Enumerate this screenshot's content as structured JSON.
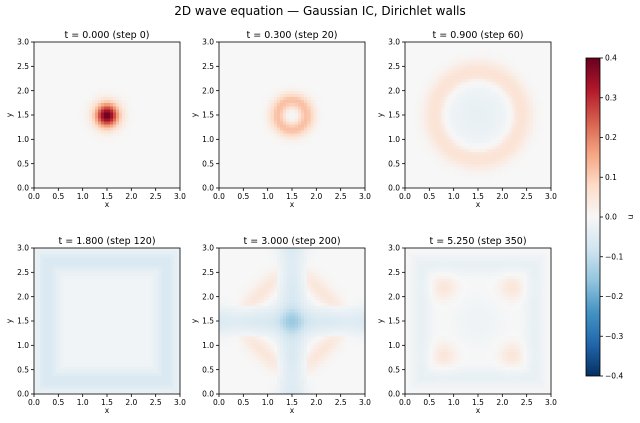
{
  "title": "2D wave equation — Gaussian IC, Dirichlet walls",
  "colorbar": {
    "label": "u",
    "range": [
      -0.4,
      0.4
    ],
    "ticks": [
      "0.4",
      "0.3",
      "0.2",
      "0.1",
      "0.0",
      "−0.1",
      "−0.2",
      "−0.3",
      "−0.4"
    ],
    "colormap": "RdBu_r"
  },
  "axis_ticks": [
    "0.0",
    "0.5",
    "1.0",
    "1.5",
    "2.0",
    "2.5",
    "3.0"
  ],
  "chart_data": [
    {
      "type": "heatmap",
      "title": "t = 0.000  (step 0)",
      "xlabel": "x",
      "ylabel": "y",
      "xlim": [
        0,
        3
      ],
      "ylim": [
        0,
        3
      ],
      "pattern": "gaussian",
      "peak_value": 0.4
    },
    {
      "type": "heatmap",
      "title": "t = 0.300  (step 20)",
      "xlabel": "x",
      "ylabel": "y",
      "xlim": [
        0,
        3
      ],
      "ylim": [
        0,
        3
      ],
      "pattern": "ring",
      "peak_value": 0.12
    },
    {
      "type": "heatmap",
      "title": "t = 0.900  (step 60)",
      "xlabel": "x",
      "ylabel": "y",
      "xlim": [
        0,
        3
      ],
      "ylim": [
        0,
        3
      ],
      "pattern": "ring",
      "peak_value": 0.06
    },
    {
      "type": "heatmap",
      "title": "t = 1.800  (step 120)",
      "xlabel": "x",
      "ylabel": "y",
      "xlim": [
        0,
        3
      ],
      "ylim": [
        0,
        3
      ],
      "pattern": "reflected-frame",
      "peak_value": -0.06
    },
    {
      "type": "heatmap",
      "title": "t = 3.000  (step 200)",
      "xlabel": "x",
      "ylabel": "y",
      "xlim": [
        0,
        3
      ],
      "ylim": [
        0,
        3
      ],
      "pattern": "cross-and-corners",
      "peak_value": -0.1
    },
    {
      "type": "heatmap",
      "title": "t = 5.250  (step 350)",
      "xlabel": "x",
      "ylabel": "y",
      "xlim": [
        0,
        3
      ],
      "ylim": [
        0,
        3
      ],
      "pattern": "interference",
      "peak_value": 0.06
    }
  ]
}
